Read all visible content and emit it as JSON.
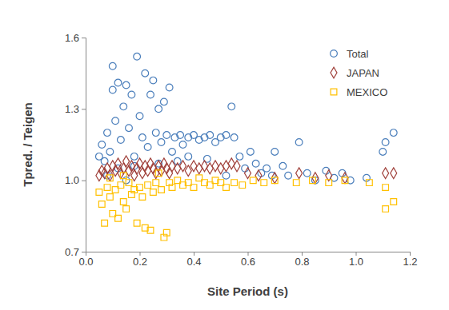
{
  "chart_data": {
    "type": "scatter",
    "x_label": "Site Period (s)",
    "y_label": "Tpred. / Teigen",
    "xlim": [
      0,
      1.2
    ],
    "ylim": [
      0.7,
      1.6
    ],
    "xticks": [
      {
        "value": 0,
        "label": "0.0"
      },
      0.2,
      0.4,
      0.6,
      0.8,
      {
        "value": 1,
        "label": "1.0"
      },
      1.2
    ],
    "yticks": [
      0.7,
      {
        "value": 1,
        "label": "1.0"
      },
      1.3,
      1.6
    ],
    "grid": false,
    "legend": "top-right",
    "series": [
      {
        "name": "Total",
        "color": "#4a7ebb",
        "marker": "circle",
        "x": [
          0.05,
          0.06,
          0.07,
          0.08,
          0.09,
          0.1,
          0.1,
          0.11,
          0.12,
          0.13,
          0.14,
          0.15,
          0.16,
          0.17,
          0.18,
          0.19,
          0.2,
          0.21,
          0.22,
          0.23,
          0.24,
          0.25,
          0.26,
          0.27,
          0.28,
          0.29,
          0.3,
          0.31,
          0.32,
          0.33,
          0.34,
          0.35,
          0.36,
          0.38,
          0.4,
          0.42,
          0.44,
          0.46,
          0.48,
          0.5,
          0.52,
          0.54,
          0.55,
          0.57,
          0.59,
          0.61,
          0.63,
          0.65,
          0.67,
          0.69,
          0.7,
          0.73,
          0.75,
          0.79,
          0.82,
          0.85,
          0.89,
          0.92,
          0.95,
          0.98,
          1.04,
          1.1,
          1.11,
          1.14,
          0.12,
          0.18,
          0.27,
          0.38,
          0.45,
          0.08,
          0.15,
          0.52
        ],
        "values": [
          1.1,
          1.15,
          1.08,
          1.2,
          1.12,
          1.48,
          1.38,
          1.25,
          1.41,
          1.17,
          1.31,
          1.4,
          1.22,
          1.36,
          1.1,
          1.52,
          1.27,
          1.18,
          1.45,
          1.14,
          1.36,
          1.42,
          1.2,
          1.3,
          1.16,
          1.33,
          1.19,
          1.39,
          1.12,
          1.18,
          1.08,
          1.19,
          1.15,
          1.18,
          1.19,
          1.17,
          1.18,
          1.19,
          1.16,
          1.18,
          1.19,
          1.31,
          1.18,
          1.1,
          1.05,
          1.12,
          1.07,
          1.03,
          1.05,
          1.02,
          1.12,
          1.06,
          1.02,
          1.16,
          1.03,
          1.0,
          1.04,
          1.01,
          1.03,
          1.0,
          1.01,
          1.12,
          1.16,
          1.2,
          1.05,
          1.06,
          1.07,
          1.1,
          1.09,
          1.02,
          1.0,
          1.02
        ]
      },
      {
        "name": "JAPAN",
        "color": "#a0403a",
        "marker": "diamond",
        "x": [
          0.05,
          0.06,
          0.07,
          0.08,
          0.09,
          0.1,
          0.11,
          0.12,
          0.13,
          0.14,
          0.15,
          0.16,
          0.17,
          0.18,
          0.19,
          0.2,
          0.21,
          0.22,
          0.23,
          0.24,
          0.25,
          0.26,
          0.27,
          0.28,
          0.29,
          0.3,
          0.31,
          0.32,
          0.34,
          0.36,
          0.38,
          0.4,
          0.42,
          0.44,
          0.46,
          0.48,
          0.5,
          0.52,
          0.54,
          0.56,
          0.6,
          0.64,
          0.7,
          0.79,
          0.85,
          0.9,
          0.96,
          1.11,
          1.14
        ],
        "values": [
          1.02,
          1.04,
          1.03,
          1.05,
          1.02,
          1.06,
          1.04,
          1.07,
          1.03,
          1.05,
          1.08,
          1.04,
          1.06,
          1.02,
          1.05,
          1.07,
          1.03,
          1.06,
          1.04,
          1.07,
          1.05,
          1.03,
          1.06,
          1.04,
          1.07,
          1.05,
          1.03,
          1.06,
          1.05,
          1.06,
          1.04,
          1.06,
          1.05,
          1.06,
          1.05,
          1.06,
          1.05,
          1.06,
          1.07,
          1.06,
          1.03,
          1.02,
          1.01,
          1.03,
          1.01,
          1.02,
          1.01,
          1.03,
          1.03
        ]
      },
      {
        "name": "MEXICO",
        "color": "#ffc000",
        "marker": "square",
        "x": [
          0.05,
          0.06,
          0.07,
          0.08,
          0.09,
          0.1,
          0.11,
          0.12,
          0.13,
          0.14,
          0.15,
          0.16,
          0.17,
          0.18,
          0.19,
          0.2,
          0.21,
          0.22,
          0.23,
          0.24,
          0.25,
          0.26,
          0.27,
          0.28,
          0.29,
          0.3,
          0.31,
          0.32,
          0.34,
          0.36,
          0.38,
          0.4,
          0.42,
          0.44,
          0.46,
          0.48,
          0.5,
          0.52,
          0.55,
          0.58,
          0.62,
          0.66,
          0.7,
          0.78,
          0.84,
          0.9,
          0.96,
          1.05,
          1.11,
          1.11,
          1.14,
          0.09,
          0.14
        ],
        "values": [
          0.95,
          0.9,
          0.82,
          0.97,
          0.93,
          0.86,
          0.96,
          0.84,
          0.98,
          0.91,
          0.88,
          0.99,
          0.94,
          0.96,
          0.82,
          0.97,
          0.93,
          0.8,
          0.98,
          0.79,
          0.95,
          0.99,
          1.03,
          0.96,
          0.76,
          0.78,
          0.99,
          0.97,
          1.0,
          0.98,
          0.99,
          0.97,
          1.01,
          0.99,
          0.98,
          1.0,
          0.99,
          0.97,
          0.99,
          0.98,
          1.0,
          0.99,
          1.0,
          0.99,
          1.0,
          0.99,
          1.0,
          0.99,
          0.88,
          0.97,
          0.91,
          1.01,
          1.02
        ]
      }
    ]
  }
}
